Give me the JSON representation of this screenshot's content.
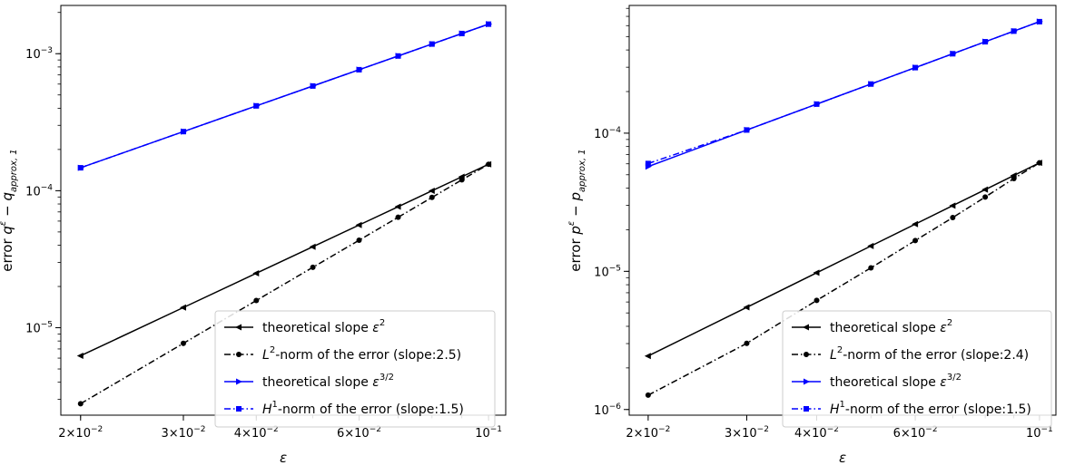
{
  "chart_data": [
    {
      "type": "line",
      "scale": {
        "x": "log",
        "y": "log"
      },
      "xlabel": "ε",
      "ylabel": "error q^ε − q_approx,1",
      "ylabel_parts": {
        "prefix": "error ",
        "base": "q",
        "sup": "ε",
        "minus": " − ",
        "term": "q",
        "sub": "approx, 1"
      },
      "xlim": [
        0.0185,
        0.107
      ],
      "ylim": [
        2.3e-06,
        0.00225
      ],
      "x_ticks": [
        {
          "value": 0.02,
          "mantissa": "2×10",
          "exp": "−2"
        },
        {
          "value": 0.03,
          "mantissa": "3×10",
          "exp": "−2"
        },
        {
          "value": 0.04,
          "mantissa": "4×10",
          "exp": "−2"
        },
        {
          "value": 0.06,
          "mantissa": "6×10",
          "exp": "−2"
        },
        {
          "value": 0.1,
          "mantissa": "10",
          "exp": "−1"
        }
      ],
      "y_ticks": [
        {
          "value": 1e-05,
          "mantissa": "10",
          "exp": "−5"
        },
        {
          "value": 0.0001,
          "mantissa": "10",
          "exp": "−4"
        },
        {
          "value": 0.001,
          "mantissa": "10",
          "exp": "−3"
        }
      ],
      "x": [
        0.02,
        0.03,
        0.04,
        0.05,
        0.06,
        0.07,
        0.08,
        0.09,
        0.1
      ],
      "series": [
        {
          "name": "theoretical slope ε^2",
          "color": "#000000",
          "dash": "solid",
          "marker": "triangle-left",
          "values": [
            6.24e-06,
            1.404e-05,
            2.496e-05,
            3.9e-05,
            5.616e-05,
            7.644e-05,
            9.984e-05,
            0.0001264,
            0.000156
          ]
        },
        {
          "name": "L^2-norm of the error (slope:2.5)",
          "color": "#000000",
          "dash": "dashdot",
          "marker": "circle",
          "values": [
            2.79e-06,
            7.69e-06,
            1.58e-05,
            2.76e-05,
            4.35e-05,
            6.4e-05,
            8.93e-05,
            0.00012,
            0.000156
          ]
        },
        {
          "name": "theoretical slope ε^{3/2}",
          "color": "#0000ff",
          "dash": "solid",
          "marker": "triangle-right",
          "values": [
            0.000147,
            0.00027,
            0.000416,
            0.000581,
            0.000764,
            0.000962,
            0.001176,
            0.001403,
            0.001643
          ]
        },
        {
          "name": "H^1-norm of the error (slope:1.5)",
          "color": "#0000ff",
          "dash": "dashdot",
          "marker": "square",
          "values": [
            0.000147,
            0.00027,
            0.000416,
            0.000581,
            0.000764,
            0.000962,
            0.001176,
            0.001403,
            0.001643
          ]
        }
      ],
      "legend": {
        "placement": "lower-right",
        "entries": [
          {
            "pre": "theoretical slope ",
            "base": "ε",
            "sup": "2",
            "post": ""
          },
          {
            "pre": "",
            "base": "L",
            "sup": "2",
            "post": "-norm of the error (slope:2.5)"
          },
          {
            "pre": "theoretical slope ",
            "base": "ε",
            "sup": "3/2",
            "post": ""
          },
          {
            "pre": "",
            "base": "H",
            "sup": "1",
            "post": "-norm of the error (slope:1.5)"
          }
        ]
      },
      "grid": false
    },
    {
      "type": "line",
      "scale": {
        "x": "log",
        "y": "log"
      },
      "xlabel": "ε",
      "ylabel": "error p^ε − p_approx,1",
      "ylabel_parts": {
        "prefix": "error ",
        "base": "p",
        "sup": "ε",
        "minus": " − ",
        "term": "p",
        "sub": "approx, 1"
      },
      "xlim": [
        0.0185,
        0.107
      ],
      "ylim": [
        9.1e-07,
        0.00084
      ],
      "x_ticks": [
        {
          "value": 0.02,
          "mantissa": "2×10",
          "exp": "−2"
        },
        {
          "value": 0.03,
          "mantissa": "3×10",
          "exp": "−2"
        },
        {
          "value": 0.04,
          "mantissa": "4×10",
          "exp": "−2"
        },
        {
          "value": 0.06,
          "mantissa": "6×10",
          "exp": "−2"
        },
        {
          "value": 0.1,
          "mantissa": "10",
          "exp": "−1"
        }
      ],
      "y_ticks": [
        {
          "value": 1e-06,
          "mantissa": "10",
          "exp": "−6"
        },
        {
          "value": 1e-05,
          "mantissa": "10",
          "exp": "−5"
        },
        {
          "value": 0.0001,
          "mantissa": "10",
          "exp": "−4"
        }
      ],
      "x": [
        0.02,
        0.03,
        0.04,
        0.05,
        0.06,
        0.07,
        0.08,
        0.09,
        0.1
      ],
      "series": [
        {
          "name": "theoretical slope ε^2",
          "color": "#000000",
          "dash": "solid",
          "marker": "triangle-left",
          "values": [
            2.44e-06,
            5.49e-06,
            9.76e-06,
            1.525e-05,
            2.196e-05,
            2.989e-05,
            3.904e-05,
            4.941e-05,
            6.1e-05
          ]
        },
        {
          "name": "L^2-norm of the error (slope:2.4)",
          "color": "#000000",
          "dash": "dashdot",
          "marker": "circle",
          "values": [
            1.27e-06,
            3.01e-06,
            6.16e-06,
            1.06e-05,
            1.67e-05,
            2.45e-05,
            3.45e-05,
            4.69e-05,
            6.1e-05
          ]
        },
        {
          "name": "theoretical slope ε^{3/2}",
          "color": "#0000ff",
          "dash": "solid",
          "marker": "triangle-right",
          "values": [
            5.73e-05,
            0.0001054,
            0.0001622,
            0.0002267,
            0.000298,
            0.0003755,
            0.0004587,
            0.0005474,
            0.000641
          ]
        },
        {
          "name": "H^1-norm of the error (slope:1.5)",
          "color": "#0000ff",
          "dash": "dashdot",
          "marker": "square",
          "values": [
            6.03e-05,
            0.0001054,
            0.0001622,
            0.0002267,
            0.000298,
            0.0003755,
            0.0004587,
            0.0005474,
            0.000641
          ]
        }
      ],
      "legend": {
        "placement": "lower-right",
        "entries": [
          {
            "pre": "theoretical slope ",
            "base": "ε",
            "sup": "2",
            "post": ""
          },
          {
            "pre": "",
            "base": "L",
            "sup": "2",
            "post": "-norm of the error (slope:2.4)"
          },
          {
            "pre": "theoretical slope ",
            "base": "ε",
            "sup": "3/2",
            "post": ""
          },
          {
            "pre": "",
            "base": "H",
            "sup": "1",
            "post": "-norm of the error (slope:1.5)"
          }
        ]
      },
      "grid": false
    }
  ]
}
